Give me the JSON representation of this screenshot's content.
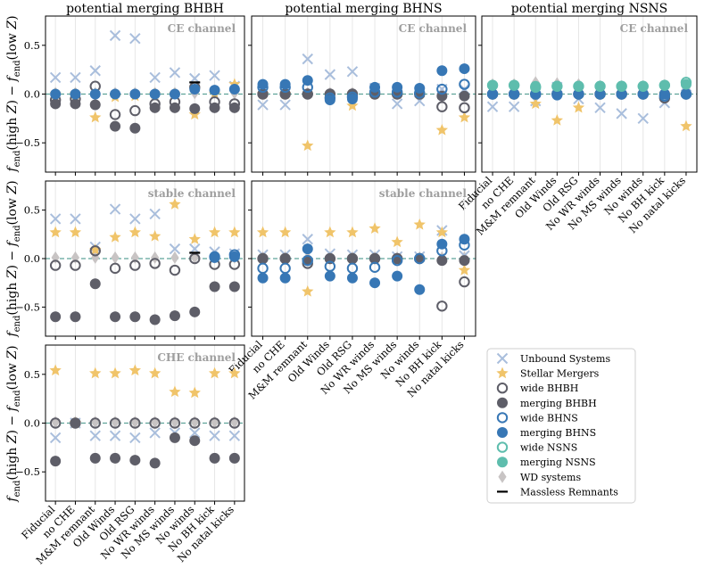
{
  "figure": {
    "ylabel": "f_end(high Z) − f_end(low Z)",
    "ylabel_parts": [
      "f",
      "end",
      "(high ",
      "Z",
      ") − ",
      "f",
      "end",
      "(low ",
      "Z",
      ")"
    ],
    "categories": [
      "Fiducial",
      "no CHE",
      "M&M remnant",
      "Old Winds",
      "Old RSG",
      "No WR winds",
      "No MS winds",
      "No winds",
      "No BH kick",
      "No natal kicks"
    ],
    "yticks": [
      -0.5,
      0.0,
      0.5
    ],
    "ytick_labels": [
      "−0.5",
      "0.0",
      "0.5"
    ],
    "colors": {
      "unbound": "#a9bedc",
      "stellar": "#f0c46a",
      "bhbh": "#5e5e68",
      "bhns": "#3777b5",
      "nsns": "#5ebdad",
      "wd": "#c8c4c4",
      "massless": "#000000",
      "guide": "#5fa39a",
      "grid": "#e6e6e6"
    }
  },
  "legend": [
    {
      "label": "Unbound Systems",
      "key": "unbound",
      "icon": "x-marker-icon"
    },
    {
      "label": "Stellar Mergers",
      "key": "stellar",
      "icon": "star-marker-icon"
    },
    {
      "label": "wide BHBH",
      "key": "wide_bhbh",
      "icon": "open-circle-icon"
    },
    {
      "label": "merging BHBH",
      "key": "merging_bhbh",
      "icon": "filled-circle-icon"
    },
    {
      "label": "wide BHNS",
      "key": "wide_bhns",
      "icon": "open-circle-icon"
    },
    {
      "label": "merging BHNS",
      "key": "merging_bhns",
      "icon": "filled-circle-icon"
    },
    {
      "label": "wide NSNS",
      "key": "wide_nsns",
      "icon": "open-circle-icon"
    },
    {
      "label": "merging NSNS",
      "key": "merging_nsns",
      "icon": "filled-circle-icon"
    },
    {
      "label": "WD systems",
      "key": "wd",
      "icon": "diamond-marker-icon"
    },
    {
      "label": "Massless Remnants",
      "key": "massless",
      "icon": "dash-marker-icon"
    }
  ],
  "chart_data": [
    {
      "id": "ce_bhbh",
      "type": "scatter",
      "title": "potential merging BHBH",
      "annotation": "CE channel",
      "ylim": [
        -0.8,
        0.8
      ],
      "series": {
        "unbound": [
          0.17,
          0.17,
          0.24,
          0.6,
          0.57,
          0.17,
          0.22,
          0.16,
          0.19,
          0.08
        ],
        "stellar": [
          0.0,
          0.0,
          -0.24,
          -0.03,
          -0.02,
          0.0,
          0.0,
          -0.21,
          0.0,
          0.1
        ],
        "wide_bhbh": [
          -0.06,
          -0.05,
          0.08,
          -0.21,
          -0.17,
          -0.1,
          -0.08,
          0.07,
          -0.08,
          -0.1
        ],
        "merging_bhbh": [
          -0.1,
          -0.1,
          -0.11,
          -0.33,
          -0.35,
          -0.14,
          -0.14,
          -0.15,
          -0.14,
          -0.14
        ],
        "wide_bhns": null,
        "merging_bhns": [
          0,
          0,
          0,
          0,
          0,
          0,
          0,
          0.05,
          0.04,
          0.05
        ],
        "wide_nsns": null,
        "merging_nsns": null,
        "wd": [
          0.01,
          0.01,
          0.01,
          0.01,
          0.01,
          0.01,
          0.01,
          0.01,
          0.01,
          0.01
        ],
        "massless": [
          null,
          null,
          null,
          null,
          null,
          null,
          null,
          0.12,
          null,
          null
        ]
      }
    },
    {
      "id": "ce_bhns",
      "type": "scatter",
      "title": "potential merging BHNS",
      "annotation": "CE channel",
      "ylim": [
        -0.8,
        0.8
      ],
      "series": {
        "unbound": [
          -0.11,
          -0.11,
          0.36,
          0.2,
          0.23,
          0.06,
          -0.1,
          -0.07,
          0.05,
          0.05
        ],
        "stellar": [
          0.0,
          0.0,
          -0.53,
          -0.05,
          -0.12,
          0.0,
          0.0,
          0.0,
          -0.37,
          -0.24
        ],
        "wide_bhbh": [
          0.0,
          0.0,
          0.0,
          0.0,
          0.0,
          0.0,
          0.0,
          0.0,
          -0.13,
          -0.14
        ],
        "merging_bhbh": [
          0,
          0,
          0,
          0,
          0,
          0,
          0,
          0,
          -0.02,
          -0.02
        ],
        "wide_bhns": [
          0.07,
          0.07,
          0.07,
          -0.04,
          -0.03,
          0.02,
          0.02,
          0.01,
          0.05,
          0.1
        ],
        "merging_bhns": [
          0.1,
          0.1,
          0.14,
          -0.06,
          -0.05,
          0.07,
          0.07,
          0.06,
          0.24,
          0.26
        ],
        "wide_nsns": null,
        "merging_nsns": null,
        "wd": [
          0.01,
          0.01,
          0.01,
          0.01,
          0.01,
          0.01,
          0.01,
          0.01,
          0.01,
          0.01
        ],
        "massless": null
      }
    },
    {
      "id": "ce_nsns",
      "type": "scatter",
      "title": "potential merging NSNS",
      "annotation": "CE channel",
      "ylim": [
        -0.8,
        0.8
      ],
      "series": {
        "unbound": [
          -0.13,
          -0.13,
          -0.07,
          0.07,
          -0.05,
          -0.14,
          -0.2,
          -0.25,
          -0.09,
          0.08
        ],
        "stellar": [
          0.0,
          0.0,
          -0.1,
          -0.27,
          -0.14,
          0.0,
          0.0,
          0.0,
          0.0,
          -0.33
        ],
        "wide_bhbh": [
          0,
          0,
          0,
          0,
          0,
          0,
          0,
          0,
          -0.04,
          0
        ],
        "merging_bhbh": [
          0,
          0,
          0,
          0,
          0,
          0,
          0,
          0,
          0,
          0
        ],
        "wide_bhns": [
          0,
          0,
          0,
          0,
          0,
          0,
          0,
          0,
          -0.02,
          0
        ],
        "merging_bhns": [
          0,
          0,
          0,
          -0.01,
          0,
          0,
          0,
          0,
          0,
          0
        ],
        "wide_nsns": [
          0.09,
          0.09,
          0.07,
          0.08,
          0.08,
          0.08,
          0.08,
          0.08,
          0.09,
          0.12
        ],
        "merging_nsns": [
          0.09,
          0.09,
          0.08,
          0.08,
          0.08,
          0.08,
          0.08,
          0.08,
          0.09,
          0.1
        ],
        "wd": [
          0.1,
          0.1,
          0.12,
          0.11,
          0.1,
          0.08,
          0.08,
          0.08,
          0.09,
          0.06
        ],
        "massless": null
      }
    },
    {
      "id": "stable_bhbh",
      "type": "scatter",
      "title": "",
      "annotation": "stable channel",
      "ylim": [
        -0.8,
        0.8
      ],
      "series": {
        "unbound": [
          0.41,
          0.41,
          0.12,
          0.51,
          0.41,
          0.46,
          0.1,
          0.1,
          0.07,
          0.05
        ],
        "stellar": [
          0.27,
          0.27,
          0.09,
          0.22,
          0.27,
          0.23,
          0.56,
          0.2,
          0.27,
          0.27
        ],
        "wide_bhbh": [
          -0.07,
          -0.07,
          0.08,
          -0.1,
          -0.07,
          -0.05,
          -0.12,
          0.0,
          -0.06,
          -0.06
        ],
        "merging_bhbh": [
          -0.6,
          -0.6,
          -0.26,
          -0.6,
          -0.6,
          -0.63,
          -0.59,
          -0.55,
          -0.29,
          -0.29
        ],
        "wide_bhns": [
          null,
          null,
          null,
          null,
          null,
          null,
          null,
          null,
          0.02,
          0.04
        ],
        "merging_bhns": [
          null,
          null,
          null,
          null,
          null,
          null,
          null,
          null,
          0.01,
          0.02
        ],
        "wide_nsns": null,
        "merging_nsns": null,
        "wd": [
          0.01,
          0.01,
          0.01,
          0.01,
          0.01,
          0.01,
          0.01,
          0.01,
          0.01,
          0.01
        ],
        "massless": [
          null,
          null,
          null,
          null,
          null,
          null,
          null,
          0.06,
          null,
          null
        ]
      }
    },
    {
      "id": "stable_bhns",
      "type": "scatter",
      "title": "",
      "annotation": "stable channel",
      "ylim": [
        -0.8,
        0.8
      ],
      "series": {
        "unbound": [
          0.04,
          0.04,
          0.2,
          0.05,
          0.04,
          0.04,
          0.02,
          0.02,
          0.29,
          0.03
        ],
        "stellar": [
          0.27,
          0.27,
          -0.34,
          0.27,
          0.27,
          0.31,
          0.17,
          0.35,
          0.27,
          -0.12
        ],
        "wide_bhbh": [
          0.0,
          0.0,
          -0.05,
          0.0,
          0.0,
          0.0,
          0.0,
          0.0,
          -0.49,
          -0.24
        ],
        "merging_bhbh": [
          0,
          0,
          -0.02,
          0,
          0,
          0,
          0,
          0,
          -0.02,
          -0.02
        ],
        "wide_bhns": [
          -0.1,
          -0.1,
          -0.02,
          -0.08,
          -0.1,
          -0.09,
          -0.02,
          0.0,
          0.08,
          0.14
        ],
        "merging_bhns": [
          -0.2,
          -0.2,
          0.1,
          -0.18,
          -0.2,
          -0.25,
          -0.18,
          -0.32,
          0.15,
          0.2
        ],
        "wide_nsns": null,
        "merging_nsns": null,
        "wd": [
          0.01,
          0.01,
          0.01,
          0.01,
          0.01,
          0.01,
          0.01,
          0.01,
          0.01,
          0.01
        ],
        "massless": null
      }
    },
    {
      "id": "che_bhbh",
      "type": "scatter",
      "title": "",
      "annotation": "CHE channel",
      "ylim": [
        -0.8,
        0.8
      ],
      "series": {
        "unbound": [
          -0.15,
          0.0,
          -0.13,
          -0.13,
          -0.15,
          -0.1,
          -0.1,
          -0.1,
          -0.13,
          -0.13
        ],
        "stellar": [
          0.54,
          0.0,
          0.51,
          0.51,
          0.54,
          0.51,
          0.32,
          0.31,
          0.51,
          0.51
        ],
        "wide_bhbh": [
          0,
          0,
          0,
          0,
          0,
          0,
          0,
          0,
          0,
          0
        ],
        "merging_bhbh": [
          -0.39,
          0.0,
          -0.36,
          -0.36,
          -0.38,
          -0.41,
          -0.15,
          -0.18,
          -0.36,
          -0.36
        ],
        "wide_bhns": null,
        "merging_bhns": null,
        "wide_nsns": null,
        "merging_nsns": null,
        "wd": [
          0.01,
          0.01,
          0.01,
          0.01,
          0.01,
          0.01,
          0.01,
          0.01,
          0.01,
          0.01
        ],
        "massless": null
      }
    }
  ]
}
